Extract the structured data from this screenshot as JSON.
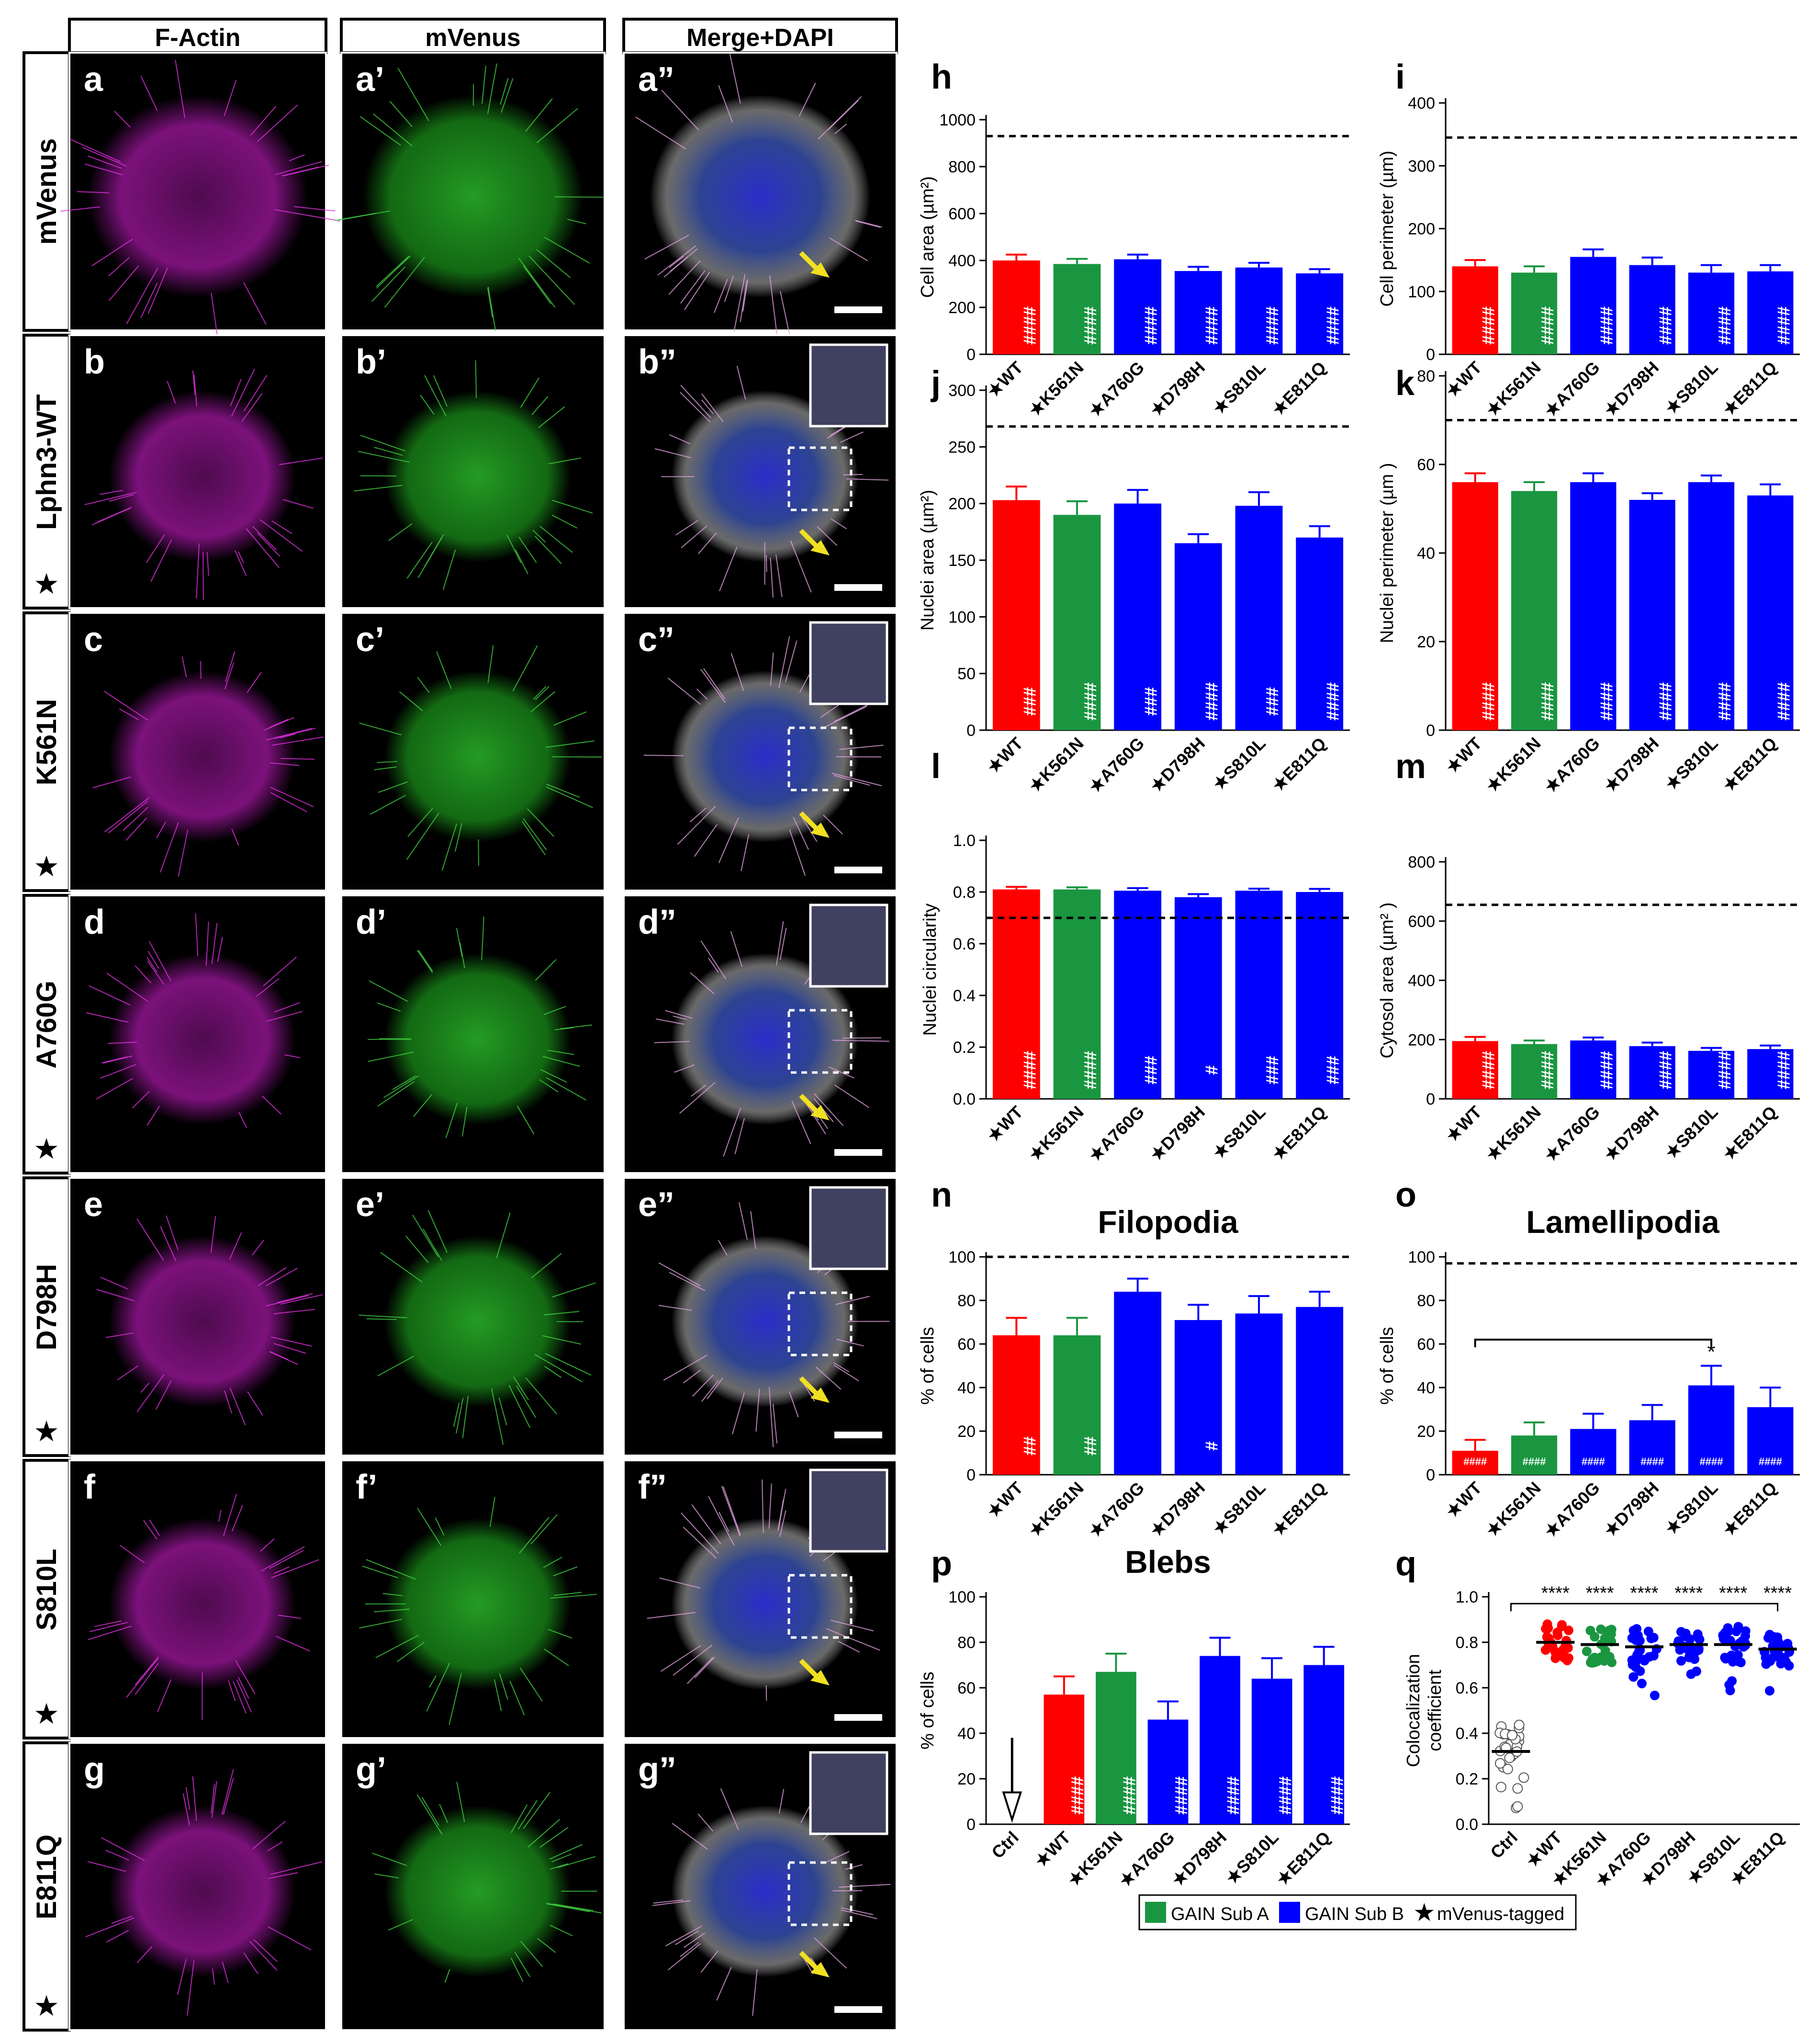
{
  "figure": {
    "columns": [
      "F-Actin",
      "mVenus",
      "Merge+DAPI"
    ],
    "rows": [
      {
        "label": "mVenus",
        "star": false,
        "panels": [
          "a",
          "a’",
          "a”"
        ]
      },
      {
        "label": "Lphn3-WT",
        "star": true,
        "panels": [
          "b",
          "b’",
          "b”"
        ]
      },
      {
        "label": "K561N",
        "star": true,
        "panels": [
          "c",
          "c’",
          "c”"
        ]
      },
      {
        "label": "A760G",
        "star": true,
        "panels": [
          "d",
          "d’",
          "d”"
        ]
      },
      {
        "label": "D798H",
        "star": true,
        "panels": [
          "e",
          "e’",
          "e”"
        ]
      },
      {
        "label": "S810L",
        "star": true,
        "panels": [
          "f",
          "f’",
          "f”"
        ]
      },
      {
        "label": "E811Q",
        "star": true,
        "panels": [
          "g",
          "g’",
          "g”"
        ]
      }
    ],
    "colors": {
      "factin": "#e020e0",
      "mvenus": "#20c020",
      "dapi": "#3030e0",
      "arrow": "#f0e020",
      "wt": "#ff0000",
      "sub_a": "#1a9641",
      "sub_b": "#0000ff"
    }
  },
  "legend": {
    "sub_a": "GAIN Sub A",
    "sub_b": "GAIN Sub B",
    "tagged": "mVenus-tagged"
  },
  "chart_data": [
    {
      "letter": "h",
      "type": "bar",
      "title": "",
      "ylabel": "Cell area (µm²)",
      "ylim": [
        0,
        1000
      ],
      "yticks": [
        0,
        200,
        400,
        600,
        800,
        1000
      ],
      "categories": [
        "WT",
        "K561N",
        "A760G",
        "D798H",
        "S810L",
        "E811Q"
      ],
      "values": [
        400,
        385,
        405,
        355,
        370,
        345
      ],
      "errors": [
        25,
        22,
        20,
        18,
        20,
        18
      ],
      "colors": [
        "#ff0000",
        "#1a9641",
        "#0000ff",
        "#0000ff",
        "#0000ff",
        "#0000ff"
      ],
      "sig": [
        "####",
        "####",
        "####",
        "####",
        "####",
        "####"
      ],
      "dashed": 930
    },
    {
      "letter": "i",
      "type": "bar",
      "title": "",
      "ylabel": "Cell perimeter (µm)",
      "ylim": [
        0,
        400
      ],
      "yticks": [
        0,
        100,
        200,
        300,
        400
      ],
      "categories": [
        "WT",
        "K561N",
        "A760G",
        "D798H",
        "S810L",
        "E811Q"
      ],
      "values": [
        140,
        130,
        155,
        142,
        130,
        132
      ],
      "errors": [
        10,
        10,
        12,
        12,
        12,
        10
      ],
      "colors": [
        "#ff0000",
        "#1a9641",
        "#0000ff",
        "#0000ff",
        "#0000ff",
        "#0000ff"
      ],
      "sig": [
        "####",
        "####",
        "####",
        "####",
        "####",
        "####"
      ],
      "dashed": 345
    },
    {
      "letter": "j",
      "type": "bar",
      "title": "",
      "ylabel": "Nuclei area (µm²)",
      "ylim": [
        0,
        300
      ],
      "yticks": [
        0,
        50,
        100,
        150,
        200,
        250,
        300
      ],
      "categories": [
        "WT",
        "K561N",
        "A760G",
        "D798H",
        "S810L",
        "E811Q"
      ],
      "values": [
        203,
        190,
        200,
        165,
        198,
        170
      ],
      "errors": [
        12,
        12,
        12,
        8,
        12,
        10
      ],
      "colors": [
        "#ff0000",
        "#1a9641",
        "#0000ff",
        "#0000ff",
        "#0000ff",
        "#0000ff"
      ],
      "sig": [
        "###",
        "####",
        "###",
        "####",
        "###",
        "####"
      ],
      "dashed": 268
    },
    {
      "letter": "k",
      "type": "bar",
      "title": "",
      "ylabel": "Nuclei perimeter (µm )",
      "ylim": [
        0,
        80
      ],
      "yticks": [
        0,
        20,
        40,
        60,
        80
      ],
      "categories": [
        "WT",
        "K561N",
        "A760G",
        "D798H",
        "S810L",
        "E811Q"
      ],
      "values": [
        56,
        54,
        56,
        52,
        56,
        53
      ],
      "errors": [
        2,
        2,
        2,
        1.5,
        1.5,
        2.5
      ],
      "colors": [
        "#ff0000",
        "#1a9641",
        "#0000ff",
        "#0000ff",
        "#0000ff",
        "#0000ff"
      ],
      "sig": [
        "####",
        "####",
        "####",
        "####",
        "####",
        "####"
      ],
      "dashed": 70
    },
    {
      "letter": "l",
      "type": "bar",
      "title": "",
      "ylabel": "Nuclei circularity",
      "ylim": [
        0,
        1
      ],
      "yticks": [
        0.0,
        0.2,
        0.4,
        0.6,
        0.8,
        1.0
      ],
      "tickfmt": "0.0",
      "categories": [
        "WT",
        "K561N",
        "A760G",
        "D798H",
        "S810L",
        "E811Q"
      ],
      "values": [
        0.81,
        0.81,
        0.805,
        0.78,
        0.805,
        0.8
      ],
      "errors": [
        0.01,
        0.008,
        0.01,
        0.012,
        0.008,
        0.012
      ],
      "colors": [
        "#ff0000",
        "#1a9641",
        "#0000ff",
        "#0000ff",
        "#0000ff",
        "#0000ff"
      ],
      "sig": [
        "####",
        "####",
        "###",
        "#",
        "###",
        "###"
      ],
      "dashed": 0.7
    },
    {
      "letter": "m",
      "type": "bar",
      "title": "",
      "ylabel": "Cytosol area (µm² )",
      "ylim": [
        0,
        800
      ],
      "yticks": [
        0,
        200,
        400,
        600,
        800
      ],
      "categories": [
        "WT",
        "K561N",
        "A760G",
        "D798H",
        "S810L",
        "E811Q"
      ],
      "values": [
        195,
        185,
        197,
        178,
        162,
        168
      ],
      "errors": [
        14,
        12,
        10,
        12,
        10,
        12
      ],
      "colors": [
        "#ff0000",
        "#1a9641",
        "#0000ff",
        "#0000ff",
        "#0000ff",
        "#0000ff"
      ],
      "sig": [
        "####",
        "####",
        "####",
        "####",
        "####",
        "####"
      ],
      "dashed": 655
    },
    {
      "letter": "n",
      "type": "bar",
      "title": "Filopodia",
      "ylabel": "% of cells",
      "ylim": [
        0,
        100
      ],
      "yticks": [
        0,
        20,
        40,
        60,
        80,
        100
      ],
      "categories": [
        "WT",
        "K561N",
        "A760G",
        "D798H",
        "S810L",
        "E811Q"
      ],
      "values": [
        64,
        64,
        84,
        71,
        74,
        77
      ],
      "errors": [
        8,
        8,
        6,
        7,
        8,
        7
      ],
      "colors": [
        "#ff0000",
        "#1a9641",
        "#0000ff",
        "#0000ff",
        "#0000ff",
        "#0000ff"
      ],
      "sig": [
        "##",
        "##",
        "",
        "#",
        "",
        ""
      ],
      "dashed": 100
    },
    {
      "letter": "o",
      "type": "bar",
      "title": "Lamellipodia",
      "ylabel": "% of cells",
      "ylim": [
        0,
        100
      ],
      "yticks": [
        0,
        20,
        40,
        60,
        80,
        100
      ],
      "categories": [
        "WT",
        "K561N",
        "A760G",
        "D798H",
        "S810L",
        "E811Q"
      ],
      "values": [
        11,
        18,
        21,
        25,
        41,
        31
      ],
      "errors": [
        5,
        6,
        7,
        7,
        9,
        9
      ],
      "colors": [
        "#ff0000",
        "#1a9641",
        "#0000ff",
        "#0000ff",
        "#0000ff",
        "#0000ff"
      ],
      "sig": [
        "####",
        "####",
        "####",
        "####",
        "####",
        "####"
      ],
      "dashed": 97,
      "bracket": {
        "from": 0,
        "to": 4,
        "y": 62,
        "label": "*"
      }
    },
    {
      "letter": "p",
      "type": "bar",
      "title": "Blebs",
      "ylabel": "% of cells",
      "ylim": [
        0,
        100
      ],
      "yticks": [
        0,
        20,
        40,
        60,
        80,
        100
      ],
      "categories": [
        "Ctrl",
        "WT",
        "K561N",
        "A760G",
        "D798H",
        "S810L",
        "E811Q"
      ],
      "star_flags": [
        false,
        true,
        true,
        true,
        true,
        true,
        true
      ],
      "values": [
        0,
        57,
        67,
        46,
        74,
        64,
        70
      ],
      "errors": [
        0,
        8,
        8,
        8,
        8,
        9,
        8
      ],
      "colors": [
        "#ffffff",
        "#ff0000",
        "#1a9641",
        "#0000ff",
        "#0000ff",
        "#0000ff",
        "#0000ff"
      ],
      "sig": [
        "",
        "####",
        "####",
        "####",
        "####",
        "####",
        "####"
      ],
      "zero_arrow": true
    },
    {
      "letter": "q",
      "type": "scatter",
      "title": "",
      "ylabel": "Colocalization coefficient",
      "ylim": [
        0,
        1
      ],
      "yticks": [
        0.0,
        0.2,
        0.4,
        0.6,
        0.8,
        1.0
      ],
      "tickfmt": "0.0",
      "categories": [
        "Ctrl",
        "WT",
        "K561N",
        "A760G",
        "D798H",
        "S810L",
        "E811Q"
      ],
      "star_flags": [
        false,
        true,
        true,
        true,
        true,
        true,
        true
      ],
      "means": [
        0.32,
        0.8,
        0.79,
        0.78,
        0.79,
        0.79,
        0.77
      ],
      "colors": [
        "#ffffff",
        "#ff0000",
        "#1a9641",
        "#0000ff",
        "#0000ff",
        "#0000ff",
        "#0000ff"
      ],
      "sig": [
        "",
        "****",
        "****",
        "****",
        "****",
        "****",
        "****"
      ],
      "bracket_y": 0.97
    }
  ]
}
